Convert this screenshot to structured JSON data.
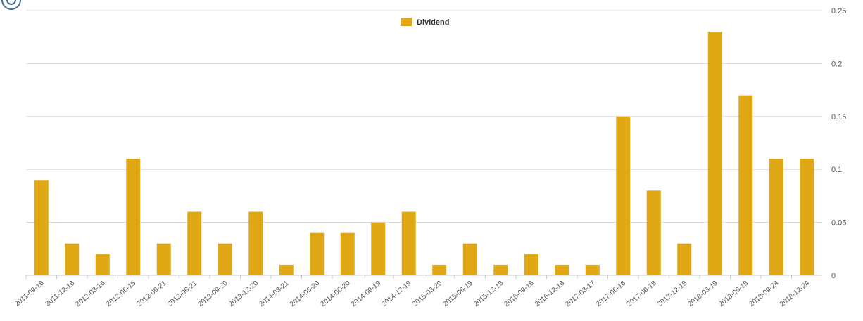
{
  "chart_data": {
    "type": "bar",
    "categories": [
      "2011-09-16",
      "2011-12-16",
      "2012-03-16",
      "2012-06-15",
      "2012-09-21",
      "2013-06-21",
      "2013-09-20",
      "2013-12-20",
      "2014-03-21",
      "2014-06-20",
      "2014-06-20",
      "2014-09-19",
      "2014-12-19",
      "2015-03-20",
      "2015-06-19",
      "2015-12-18",
      "2016-09-16",
      "2016-12-16",
      "2017-03-17",
      "2017-06-16",
      "2017-09-18",
      "2017-12-18",
      "2018-03-19",
      "2018-06-18",
      "2018-09-24",
      "2018-12-24"
    ],
    "series": [
      {
        "name": "Dividend",
        "values": [
          0.09,
          0.03,
          0.02,
          0.11,
          0.03,
          0.06,
          0.03,
          0.06,
          0.01,
          0.04,
          0.04,
          0.05,
          0.06,
          0.01,
          0.03,
          0.01,
          0.02,
          0.01,
          0.01,
          0.15,
          0.08,
          0.03,
          0.23,
          0.17,
          0.11,
          0.11
        ]
      }
    ],
    "y_ticks": [
      "0",
      "0.05",
      "0.1",
      "0.15",
      "0.2",
      "0.25"
    ],
    "ylim": [
      0,
      0.25
    ],
    "y_axis_side": "right",
    "legend_position": "top-center",
    "grid": true,
    "colors": {
      "bar": "#e0a815",
      "grid": "#d8d8d8",
      "axis": "#c0c8d8"
    }
  },
  "header": {
    "logo_icon": "circle-logo-icon"
  }
}
